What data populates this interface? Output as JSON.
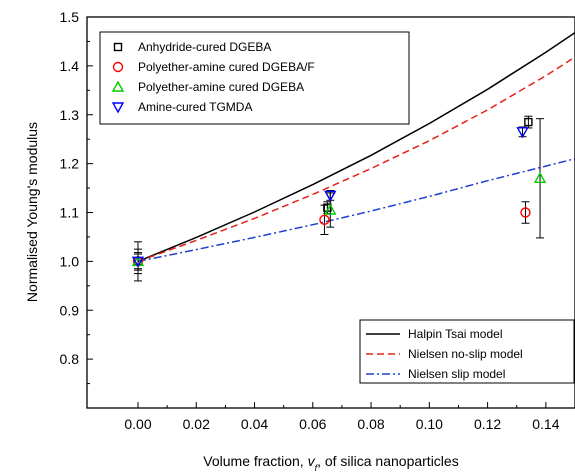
{
  "chart_data": {
    "type": "scatter",
    "xlabel_parts": [
      "Volume fraction, ",
      "v",
      "f",
      ", of silica nanoparticles"
    ],
    "ylabel": "Normalised Young's modulus",
    "xlim": [
      -0.0175,
      0.15
    ],
    "ylim": [
      0.7,
      1.5
    ],
    "xticks": [
      "0.00",
      "0.02",
      "0.04",
      "0.06",
      "0.08",
      "0.10",
      "0.12",
      "0.14"
    ],
    "yticks": [
      "0.8",
      "0.9",
      "1.0",
      "1.1",
      "1.2",
      "1.3",
      "1.4",
      "1.5"
    ],
    "grid": false,
    "legend_top_position": "top-left",
    "legend_bottom_position": "bottom-right",
    "series": [
      {
        "name": "Anhydride-cured DGEBA",
        "marker": "square",
        "color": "#000000",
        "points": [
          {
            "x": 0.0,
            "y": 1.0,
            "err": 0.025
          },
          {
            "x": 0.065,
            "y": 1.11,
            "err": 0.012
          },
          {
            "x": 0.134,
            "y": 1.285,
            "err": 0.012
          }
        ]
      },
      {
        "name": "Polyether-amine cured DGEBA/F",
        "marker": "circle",
        "color": "#ff0000",
        "points": [
          {
            "x": 0.0,
            "y": 1.0,
            "err": 0.018
          },
          {
            "x": 0.064,
            "y": 1.085,
            "err": 0.03
          },
          {
            "x": 0.133,
            "y": 1.1,
            "err": 0.022
          }
        ]
      },
      {
        "name": "Polyether-amine cured DGEBA",
        "marker": "triangle-up",
        "color": "#00cc00",
        "points": [
          {
            "x": 0.0,
            "y": 1.0,
            "err": 0.04
          },
          {
            "x": 0.066,
            "y": 1.105,
            "err": 0.035
          },
          {
            "x": 0.138,
            "y": 1.17,
            "err": 0.122
          }
        ]
      },
      {
        "name": "Amine-cured TGMDA",
        "marker": "triangle-down",
        "color": "#0000ff",
        "points": [
          {
            "x": 0.0,
            "y": 1.0,
            "err": 0.015
          },
          {
            "x": 0.066,
            "y": 1.135,
            "err": 0.01
          },
          {
            "x": 0.132,
            "y": 1.265,
            "err": 0.01
          }
        ]
      }
    ],
    "model_lines": [
      {
        "name": "Halpin Tsai model",
        "color": "#000000",
        "dash": "",
        "x": [
          0.0,
          0.02,
          0.04,
          0.06,
          0.08,
          0.1,
          0.12,
          0.14,
          0.15
        ],
        "y": [
          1.0,
          1.049,
          1.101,
          1.157,
          1.217,
          1.282,
          1.352,
          1.428,
          1.468
        ]
      },
      {
        "name": "Nielsen no-slip model",
        "color": "#e8201a",
        "dash": "7,4",
        "x": [
          0.0,
          0.02,
          0.04,
          0.06,
          0.08,
          0.1,
          0.12,
          0.14,
          0.15
        ],
        "y": [
          1.0,
          1.043,
          1.088,
          1.137,
          1.19,
          1.247,
          1.31,
          1.38,
          1.418
        ]
      },
      {
        "name": "Nielsen slip model",
        "color": "#1f3fd0",
        "dash": "8,3,2,3",
        "x": [
          0.0,
          0.02,
          0.04,
          0.06,
          0.08,
          0.1,
          0.12,
          0.14,
          0.15
        ],
        "y": [
          1.0,
          1.024,
          1.049,
          1.075,
          1.103,
          1.133,
          1.165,
          1.195,
          1.21
        ]
      }
    ]
  }
}
